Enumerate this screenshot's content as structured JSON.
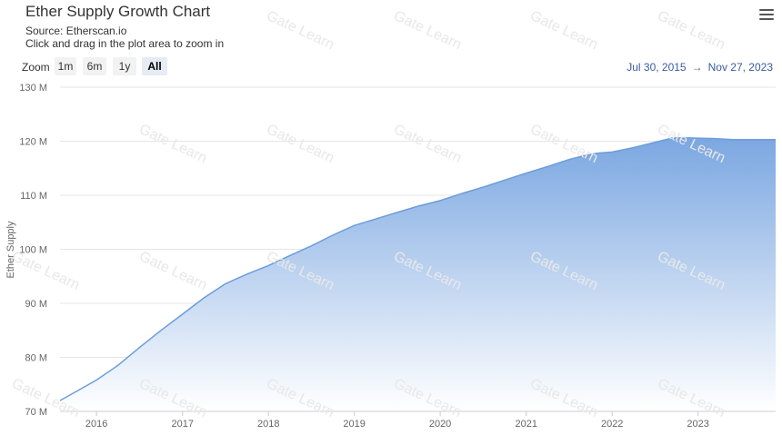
{
  "header": {
    "title": "Ether Supply Growth Chart",
    "source": "Source: Etherscan.io",
    "hint": "Click and drag in the plot area to zoom in"
  },
  "toolbar": {
    "zoom_label": "Zoom",
    "ranges": [
      "1m",
      "6m",
      "1y",
      "All"
    ],
    "active_range": "All",
    "from_date": "Jul 30, 2015",
    "arrow": "→",
    "to_date": "Nov 27, 2023"
  },
  "watermark": {
    "text": "Gate Learn"
  },
  "colors": {
    "area_top": "#7ba7e1",
    "area_bottom": "#ffffff",
    "line": "#6b9ddc",
    "date_text": "#3a5ba0"
  },
  "chart_data": {
    "type": "area",
    "title": "Ether Supply Growth Chart",
    "subtitle": "Source: Etherscan.io",
    "ylabel": "Ether Supply",
    "xlabel": "",
    "ylim": [
      70,
      130
    ],
    "xlim": [
      "2015-07-30",
      "2023-11-27"
    ],
    "y_ticks": [
      70,
      80,
      90,
      100,
      110,
      120,
      130
    ],
    "y_tick_labels": [
      "70 M",
      "80 M",
      "90 M",
      "100 M",
      "110 M",
      "120 M",
      "130 M"
    ],
    "x_ticks": [
      "2016-01-01",
      "2017-01-01",
      "2018-01-01",
      "2019-01-01",
      "2020-01-01",
      "2021-01-01",
      "2022-01-01",
      "2023-01-01"
    ],
    "x_tick_labels": [
      "2016",
      "2017",
      "2018",
      "2019",
      "2020",
      "2021",
      "2022",
      "2023"
    ],
    "grid": true,
    "legend": false,
    "series": [
      {
        "x": [
          "2015-07-30",
          "2016-01-01",
          "2016-04-01",
          "2016-07-01",
          "2016-10-01",
          "2017-01-01",
          "2017-04-01",
          "2017-07-01",
          "2017-10-01",
          "2018-01-01",
          "2018-04-01",
          "2018-07-01",
          "2018-10-01",
          "2019-01-01",
          "2019-04-01",
          "2019-07-01",
          "2019-10-01",
          "2020-01-01",
          "2020-04-01",
          "2020-07-01",
          "2020-10-01",
          "2021-01-01",
          "2021-04-01",
          "2021-07-01",
          "2021-09-01",
          "2021-11-01",
          "2022-01-01",
          "2022-04-01",
          "2022-07-01",
          "2022-09-15",
          "2022-12-01",
          "2023-03-01",
          "2023-06-01",
          "2023-09-01",
          "2023-11-27"
        ],
        "values": [
          72.0,
          75.8,
          78.5,
          81.8,
          85.0,
          88.0,
          91.0,
          93.6,
          95.4,
          97.0,
          98.8,
          100.6,
          102.6,
          104.4,
          105.6,
          106.8,
          108.0,
          109.0,
          110.3,
          111.5,
          112.8,
          114.1,
          115.3,
          116.6,
          117.3,
          117.8,
          118.0,
          118.8,
          119.8,
          120.6,
          120.6,
          120.5,
          120.3,
          120.3,
          120.3
        ]
      }
    ]
  }
}
